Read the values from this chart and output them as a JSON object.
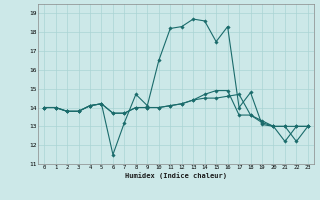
{
  "xlabel": "Humidex (Indice chaleur)",
  "xlim": [
    -0.5,
    23.5
  ],
  "ylim": [
    11,
    19.5
  ],
  "yticks": [
    11,
    12,
    13,
    14,
    15,
    16,
    17,
    18,
    19
  ],
  "xticks": [
    0,
    1,
    2,
    3,
    4,
    5,
    6,
    7,
    8,
    9,
    10,
    11,
    12,
    13,
    14,
    15,
    16,
    17,
    18,
    19,
    20,
    21,
    22,
    23
  ],
  "xtick_labels": [
    "0",
    "1",
    "2",
    "3",
    "4",
    "5",
    "6",
    "7",
    "8",
    "9",
    "10",
    "11",
    "12",
    "13",
    "14",
    "15",
    "16",
    "17",
    "18",
    "19",
    "20",
    "21",
    "22",
    "23"
  ],
  "background_color": "#cce8e8",
  "grid_color": "#aad4d4",
  "line_color": "#1a6b6b",
  "line_width": 0.8,
  "marker": "D",
  "marker_size": 1.8,
  "series": [
    [
      14.0,
      14.0,
      13.8,
      13.8,
      14.1,
      14.2,
      11.5,
      13.2,
      14.7,
      14.1,
      16.5,
      18.2,
      18.3,
      18.7,
      18.6,
      17.5,
      18.3,
      14.0,
      14.8,
      13.1,
      13.0,
      12.2,
      13.0,
      13.0
    ],
    [
      14.0,
      14.0,
      13.8,
      13.8,
      14.1,
      14.2,
      13.7,
      13.7,
      14.0,
      14.0,
      14.0,
      14.1,
      14.2,
      14.4,
      14.5,
      14.5,
      14.6,
      14.7,
      13.6,
      13.3,
      13.0,
      13.0,
      13.0,
      13.0
    ],
    [
      14.0,
      14.0,
      13.8,
      13.8,
      14.1,
      14.2,
      13.7,
      13.7,
      14.0,
      14.0,
      14.0,
      14.1,
      14.2,
      14.4,
      14.7,
      14.9,
      14.9,
      13.6,
      13.6,
      13.2,
      13.0,
      13.0,
      12.2,
      13.0
    ]
  ]
}
